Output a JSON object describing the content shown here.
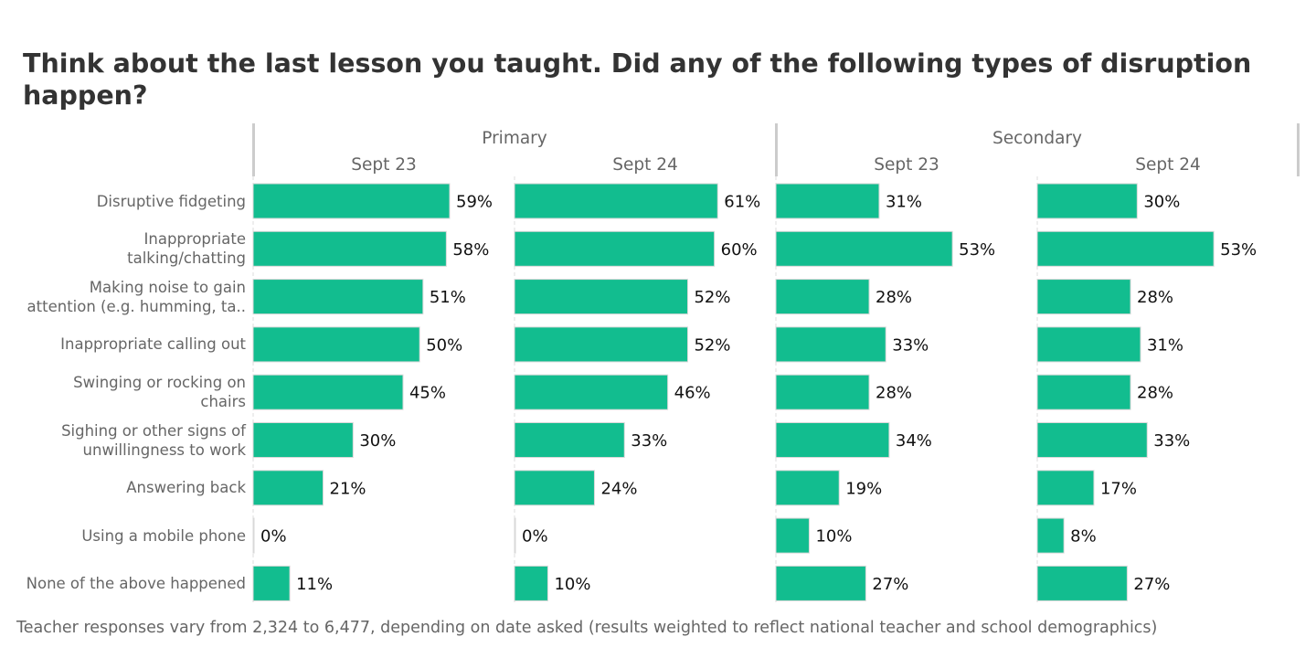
{
  "chart_data": {
    "type": "bar",
    "orientation": "horizontal",
    "title": "Think about the last lesson you taught. Did any of the following types of disruption happen?",
    "footnote": "Teacher responses vary from 2,324 to 6,477, depending on date asked (results weighted to reflect national teacher and school demographics)",
    "groups": [
      "Primary",
      "Secondary"
    ],
    "categories": [
      [
        "Disruptive fidgeting"
      ],
      [
        "Inappropriate",
        "talking/chatting"
      ],
      [
        "Making noise to gain",
        "attention (e.g. humming, ta.."
      ],
      [
        "Inappropriate calling out"
      ],
      [
        "Swinging or rocking on",
        "chairs"
      ],
      [
        "Sighing or other signs of",
        "unwillingness to work"
      ],
      [
        "Answering back"
      ],
      [
        "Using a mobile phone"
      ],
      [
        "None of the above happened"
      ]
    ],
    "series": [
      {
        "group": "Primary",
        "name": "Sept 23",
        "values": [
          59,
          58,
          51,
          50,
          45,
          30,
          21,
          0,
          11
        ]
      },
      {
        "group": "Primary",
        "name": "Sept 24",
        "values": [
          61,
          60,
          52,
          52,
          46,
          33,
          24,
          0,
          10
        ]
      },
      {
        "group": "Secondary",
        "name": "Sept 23",
        "values": [
          31,
          53,
          28,
          33,
          28,
          34,
          19,
          10,
          27
        ]
      },
      {
        "group": "Secondary",
        "name": "Sept 24",
        "values": [
          30,
          53,
          28,
          31,
          28,
          33,
          17,
          8,
          27
        ]
      }
    ],
    "value_suffix": "%",
    "xlim": [
      0,
      78
    ],
    "bar_color": "#12bd8f",
    "legend": "none",
    "grid": false
  }
}
